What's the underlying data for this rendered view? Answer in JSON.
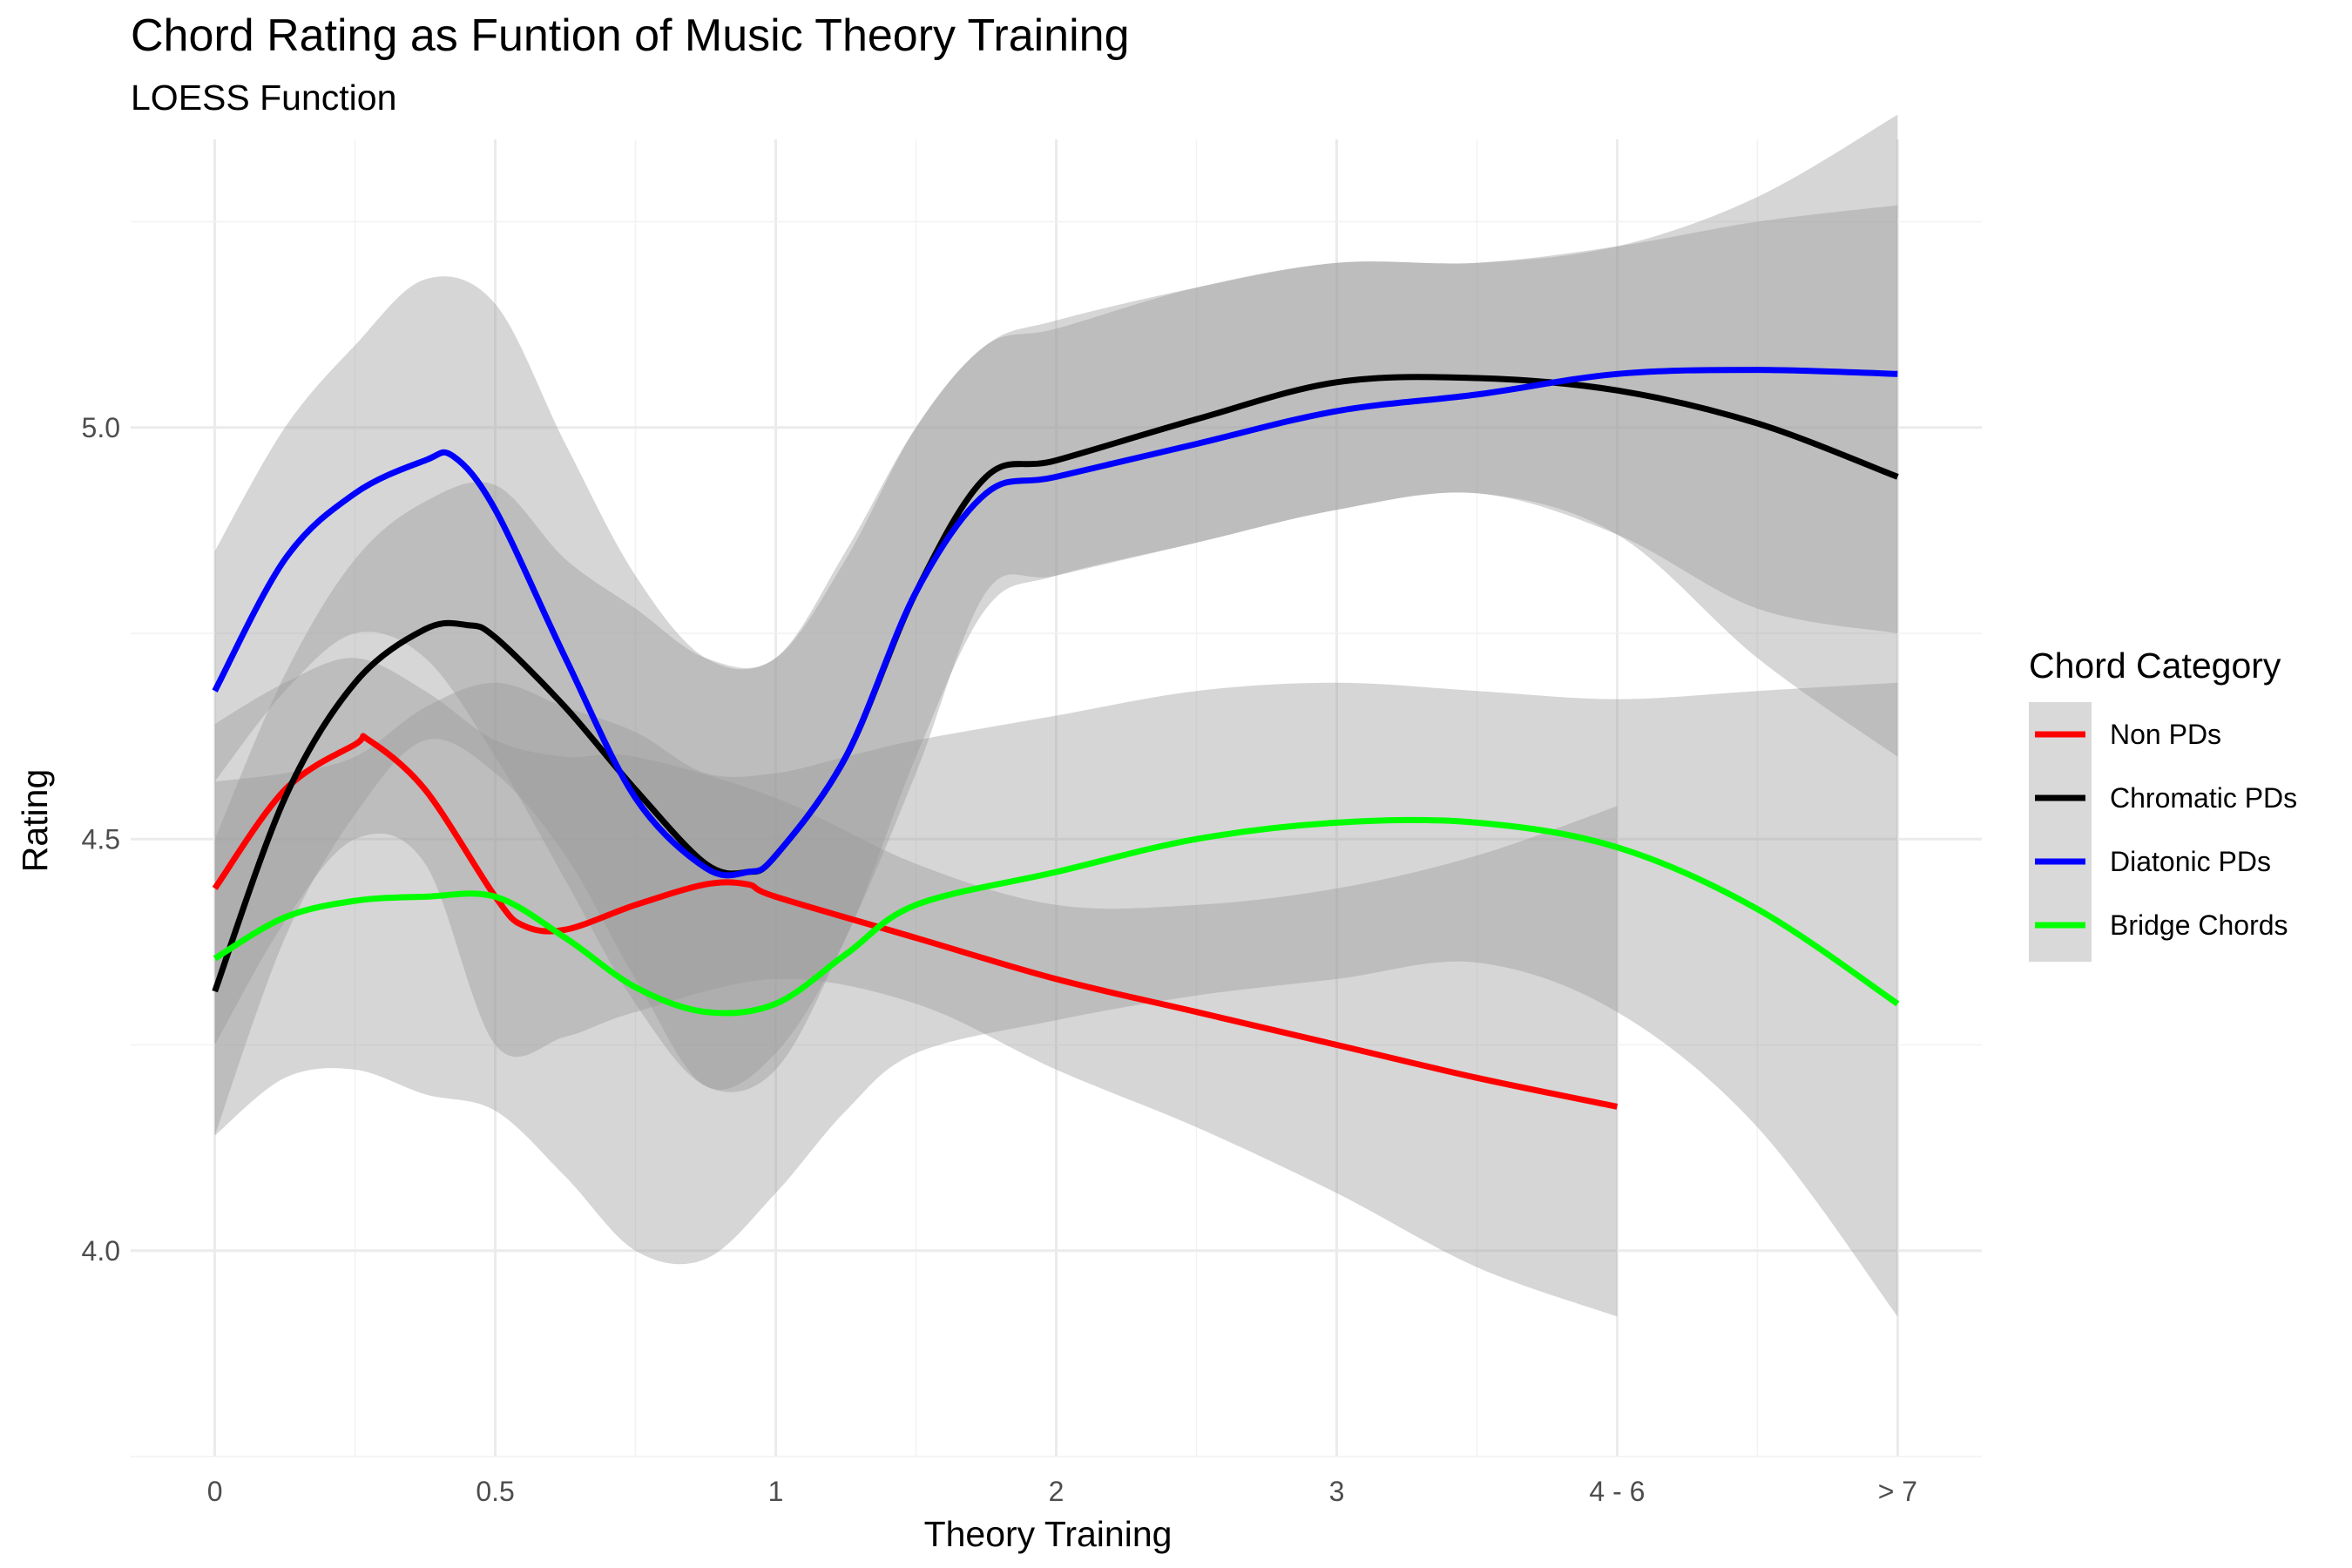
{
  "chart_data": {
    "type": "line",
    "title": "Chord Rating as Funtion of Music Theory Training",
    "subtitle": "LOESS Function",
    "xlabel": "Theory Training",
    "ylabel": "Rating",
    "categories": [
      "0",
      "0.5",
      "1",
      "2",
      "3",
      "4 - 6",
      "> 7"
    ],
    "x_positions": [
      0,
      1,
      2,
      3,
      4,
      5,
      6
    ],
    "y_ticks": [
      4.0,
      4.5,
      5.0
    ],
    "y_tick_labels": [
      "4.0",
      "4.5",
      "5.0"
    ],
    "ylim": [
      3.75,
      5.35
    ],
    "xlim": [
      -0.3,
      6.3
    ],
    "grid": true,
    "legend": {
      "title": "Chord Category",
      "placement": "right"
    },
    "series": [
      {
        "name": "Non PDs",
        "color": "#ff0000",
        "points": [
          [
            0,
            4.44
          ],
          [
            0.25,
            4.56
          ],
          [
            0.5,
            4.615
          ],
          [
            0.55,
            4.62
          ],
          [
            0.75,
            4.56
          ],
          [
            1.0,
            4.43
          ],
          [
            1.1,
            4.395
          ],
          [
            1.25,
            4.39
          ],
          [
            1.5,
            4.42
          ],
          [
            1.75,
            4.445
          ],
          [
            1.9,
            4.445
          ],
          [
            2.0,
            4.43
          ],
          [
            2.5,
            4.38
          ],
          [
            3.0,
            4.33
          ],
          [
            3.5,
            4.29
          ],
          [
            4.0,
            4.25
          ],
          [
            4.5,
            4.21
          ],
          [
            5.0,
            4.175
          ]
        ],
        "band": [
          [
            0,
            4.25,
            4.64
          ],
          [
            0.25,
            4.4,
            4.69
          ],
          [
            0.5,
            4.5,
            4.72
          ],
          [
            0.75,
            4.47,
            4.68
          ],
          [
            1.0,
            4.25,
            4.62
          ],
          [
            1.25,
            4.26,
            4.6
          ],
          [
            1.5,
            4.29,
            4.6
          ],
          [
            2.0,
            4.33,
            4.55
          ],
          [
            2.5,
            4.3,
            4.47
          ],
          [
            3.0,
            4.22,
            4.42
          ],
          [
            3.5,
            4.15,
            4.42
          ],
          [
            4.0,
            4.07,
            4.44
          ],
          [
            4.5,
            3.98,
            4.48
          ],
          [
            5.0,
            3.92,
            4.54
          ]
        ]
      },
      {
        "name": "Chromatic PDs",
        "color": "#000000",
        "points": [
          [
            0,
            4.315
          ],
          [
            0.25,
            4.55
          ],
          [
            0.5,
            4.69
          ],
          [
            0.75,
            4.755
          ],
          [
            0.9,
            4.76
          ],
          [
            1.0,
            4.745
          ],
          [
            1.25,
            4.66
          ],
          [
            1.5,
            4.56
          ],
          [
            1.75,
            4.47
          ],
          [
            1.9,
            4.46
          ],
          [
            2.0,
            4.48
          ],
          [
            2.25,
            4.6
          ],
          [
            2.5,
            4.8
          ],
          [
            2.75,
            4.94
          ],
          [
            3.0,
            4.96
          ],
          [
            3.5,
            5.01
          ],
          [
            4.0,
            5.055
          ],
          [
            4.5,
            5.06
          ],
          [
            5.0,
            5.045
          ],
          [
            5.5,
            5.005
          ],
          [
            6.0,
            4.94
          ]
        ],
        "band": [
          [
            0,
            4.14,
            4.5
          ],
          [
            0.25,
            4.38,
            4.7
          ],
          [
            0.5,
            4.53,
            4.84
          ],
          [
            0.75,
            4.62,
            4.91
          ],
          [
            1.0,
            4.58,
            4.93
          ],
          [
            1.25,
            4.48,
            4.84
          ],
          [
            1.5,
            4.33,
            4.78
          ],
          [
            1.75,
            4.2,
            4.72
          ],
          [
            2.0,
            4.24,
            4.72
          ],
          [
            2.25,
            4.38,
            4.85
          ],
          [
            2.5,
            4.6,
            5.0
          ],
          [
            2.75,
            4.78,
            5.1
          ],
          [
            3.0,
            4.82,
            5.12
          ],
          [
            3.5,
            4.86,
            5.17
          ],
          [
            4.0,
            4.9,
            5.2
          ],
          [
            4.5,
            4.92,
            5.2
          ],
          [
            5.0,
            4.87,
            5.22
          ],
          [
            5.5,
            4.72,
            5.28
          ],
          [
            6.0,
            4.6,
            5.38
          ]
        ]
      },
      {
        "name": "Diatonic PDs",
        "color": "#0000ff",
        "points": [
          [
            0,
            4.68
          ],
          [
            0.25,
            4.84
          ],
          [
            0.5,
            4.92
          ],
          [
            0.75,
            4.96
          ],
          [
            0.85,
            4.965
          ],
          [
            1.0,
            4.9
          ],
          [
            1.25,
            4.72
          ],
          [
            1.5,
            4.55
          ],
          [
            1.75,
            4.465
          ],
          [
            1.9,
            4.46
          ],
          [
            2.0,
            4.48
          ],
          [
            2.25,
            4.6
          ],
          [
            2.5,
            4.8
          ],
          [
            2.75,
            4.92
          ],
          [
            3.0,
            4.94
          ],
          [
            3.5,
            4.98
          ],
          [
            4.0,
            5.02
          ],
          [
            4.5,
            5.04
          ],
          [
            5.0,
            5.065
          ],
          [
            5.5,
            5.07
          ],
          [
            6.0,
            5.065
          ]
        ],
        "band": [
          [
            0,
            4.57,
            4.85
          ],
          [
            0.25,
            4.68,
            5.0
          ],
          [
            0.5,
            4.75,
            5.1
          ],
          [
            0.75,
            4.72,
            5.18
          ],
          [
            1.0,
            4.6,
            5.15
          ],
          [
            1.25,
            4.45,
            4.98
          ],
          [
            1.5,
            4.3,
            4.82
          ],
          [
            1.75,
            4.2,
            4.72
          ],
          [
            2.0,
            4.22,
            4.72
          ],
          [
            2.25,
            4.38,
            4.84
          ],
          [
            2.5,
            4.58,
            5.0
          ],
          [
            2.75,
            4.8,
            5.1
          ],
          [
            3.0,
            4.82,
            5.13
          ],
          [
            3.5,
            4.86,
            5.17
          ],
          [
            4.0,
            4.9,
            5.2
          ],
          [
            4.5,
            4.92,
            5.2
          ],
          [
            5.0,
            4.87,
            5.22
          ],
          [
            5.5,
            4.78,
            5.25
          ],
          [
            6.0,
            4.75,
            5.27
          ]
        ]
      },
      {
        "name": "Bridge Chords",
        "color": "#00ff00",
        "points": [
          [
            0,
            4.355
          ],
          [
            0.25,
            4.405
          ],
          [
            0.5,
            4.425
          ],
          [
            0.75,
            4.43
          ],
          [
            1.0,
            4.43
          ],
          [
            1.25,
            4.38
          ],
          [
            1.5,
            4.32
          ],
          [
            1.75,
            4.29
          ],
          [
            2.0,
            4.3
          ],
          [
            2.25,
            4.36
          ],
          [
            2.5,
            4.42
          ],
          [
            3.0,
            4.46
          ],
          [
            3.5,
            4.5
          ],
          [
            4.0,
            4.52
          ],
          [
            4.5,
            4.52
          ],
          [
            5.0,
            4.49
          ],
          [
            5.5,
            4.415
          ],
          [
            6.0,
            4.3
          ]
        ],
        "band": [
          [
            0,
            4.14,
            4.57
          ],
          [
            0.25,
            4.21,
            4.58
          ],
          [
            0.5,
            4.22,
            4.6
          ],
          [
            0.75,
            4.19,
            4.66
          ],
          [
            1.0,
            4.17,
            4.69
          ],
          [
            1.25,
            4.09,
            4.66
          ],
          [
            1.5,
            4.0,
            4.63
          ],
          [
            1.75,
            3.99,
            4.58
          ],
          [
            2.0,
            4.07,
            4.58
          ],
          [
            2.25,
            4.17,
            4.6
          ],
          [
            2.5,
            4.24,
            4.62
          ],
          [
            3.0,
            4.28,
            4.65
          ],
          [
            3.5,
            4.31,
            4.68
          ],
          [
            4.0,
            4.33,
            4.69
          ],
          [
            4.5,
            4.35,
            4.68
          ],
          [
            5.0,
            4.29,
            4.67
          ],
          [
            5.5,
            4.15,
            4.68
          ],
          [
            6.0,
            3.92,
            4.69
          ]
        ]
      }
    ]
  }
}
